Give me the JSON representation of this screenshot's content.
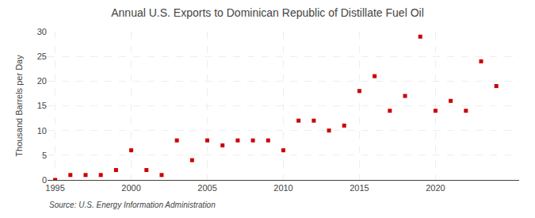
{
  "chart_data": {
    "type": "scatter",
    "title": "Annual U.S. Exports to Dominican Republic of Distillate Fuel Oil",
    "ylabel": "Thousand Barrels per Day",
    "annotations": [
      "Source: U.S. Energy Information Administration"
    ],
    "x": [
      1995,
      1996,
      1997,
      1998,
      1999,
      2000,
      2001,
      2002,
      2003,
      2004,
      2005,
      2006,
      2007,
      2008,
      2009,
      2010,
      2011,
      2012,
      2013,
      2014,
      2015,
      2016,
      2017,
      2018,
      2019,
      2020,
      2021,
      2022,
      2023,
      2024
    ],
    "values": [
      0.0,
      1.0,
      1.0,
      1.0,
      2.0,
      6.0,
      2.0,
      1.0,
      8.0,
      4.0,
      8.0,
      7.0,
      8.0,
      8.0,
      8.0,
      6.0,
      12.0,
      12.0,
      10.0,
      11.0,
      18.0,
      21.0,
      14.0,
      17.0,
      29.0,
      14.0,
      16.0,
      14.0,
      24.0,
      19.0
    ],
    "color": "#cc0000",
    "marker": "square",
    "xlim": [
      1994.5,
      2025.5
    ],
    "ylim": [
      0,
      30
    ],
    "xticks": [
      1995,
      2000,
      2005,
      2010,
      2015,
      2020
    ],
    "yticks": [
      0,
      5,
      10,
      15,
      20,
      25,
      30
    ],
    "grid": true
  }
}
